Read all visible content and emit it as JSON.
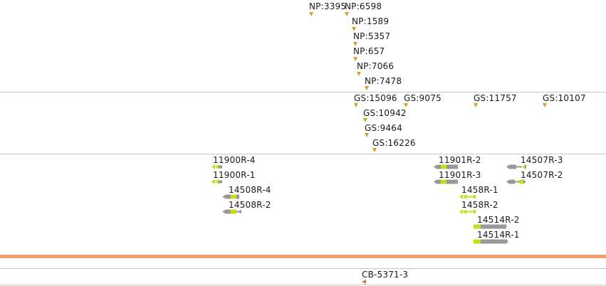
{
  "colors": {
    "marker": "#d4a020",
    "separator": "#c8c8c8",
    "orange_bar": "#f0a070",
    "gene_gray": "#999999",
    "gene_green": "#c8dc1e",
    "cb_marker": "#e07040"
  },
  "np_track": {
    "labels": [
      "NP:3395",
      "NP:6598",
      "NP:1589",
      "NP:5357",
      "NP:657",
      "NP:7066",
      "NP:7478"
    ]
  },
  "gs_track": {
    "labels": [
      "GS:15096",
      "GS:9075",
      "GS:11757",
      "GS:10107",
      "GS:10942",
      "GS:9464",
      "GS:16226"
    ]
  },
  "gene_track": {
    "labels": [
      "11900R-4",
      "11900R-1",
      "14508R-4",
      "14508R-2",
      "11901R-2",
      "11901R-3",
      "1458R-1",
      "1458R-2",
      "14514R-2",
      "14514R-1",
      "14507R-3",
      "14507R-2"
    ]
  },
  "cb_track": {
    "labels": [
      "CB-5371-3"
    ]
  }
}
